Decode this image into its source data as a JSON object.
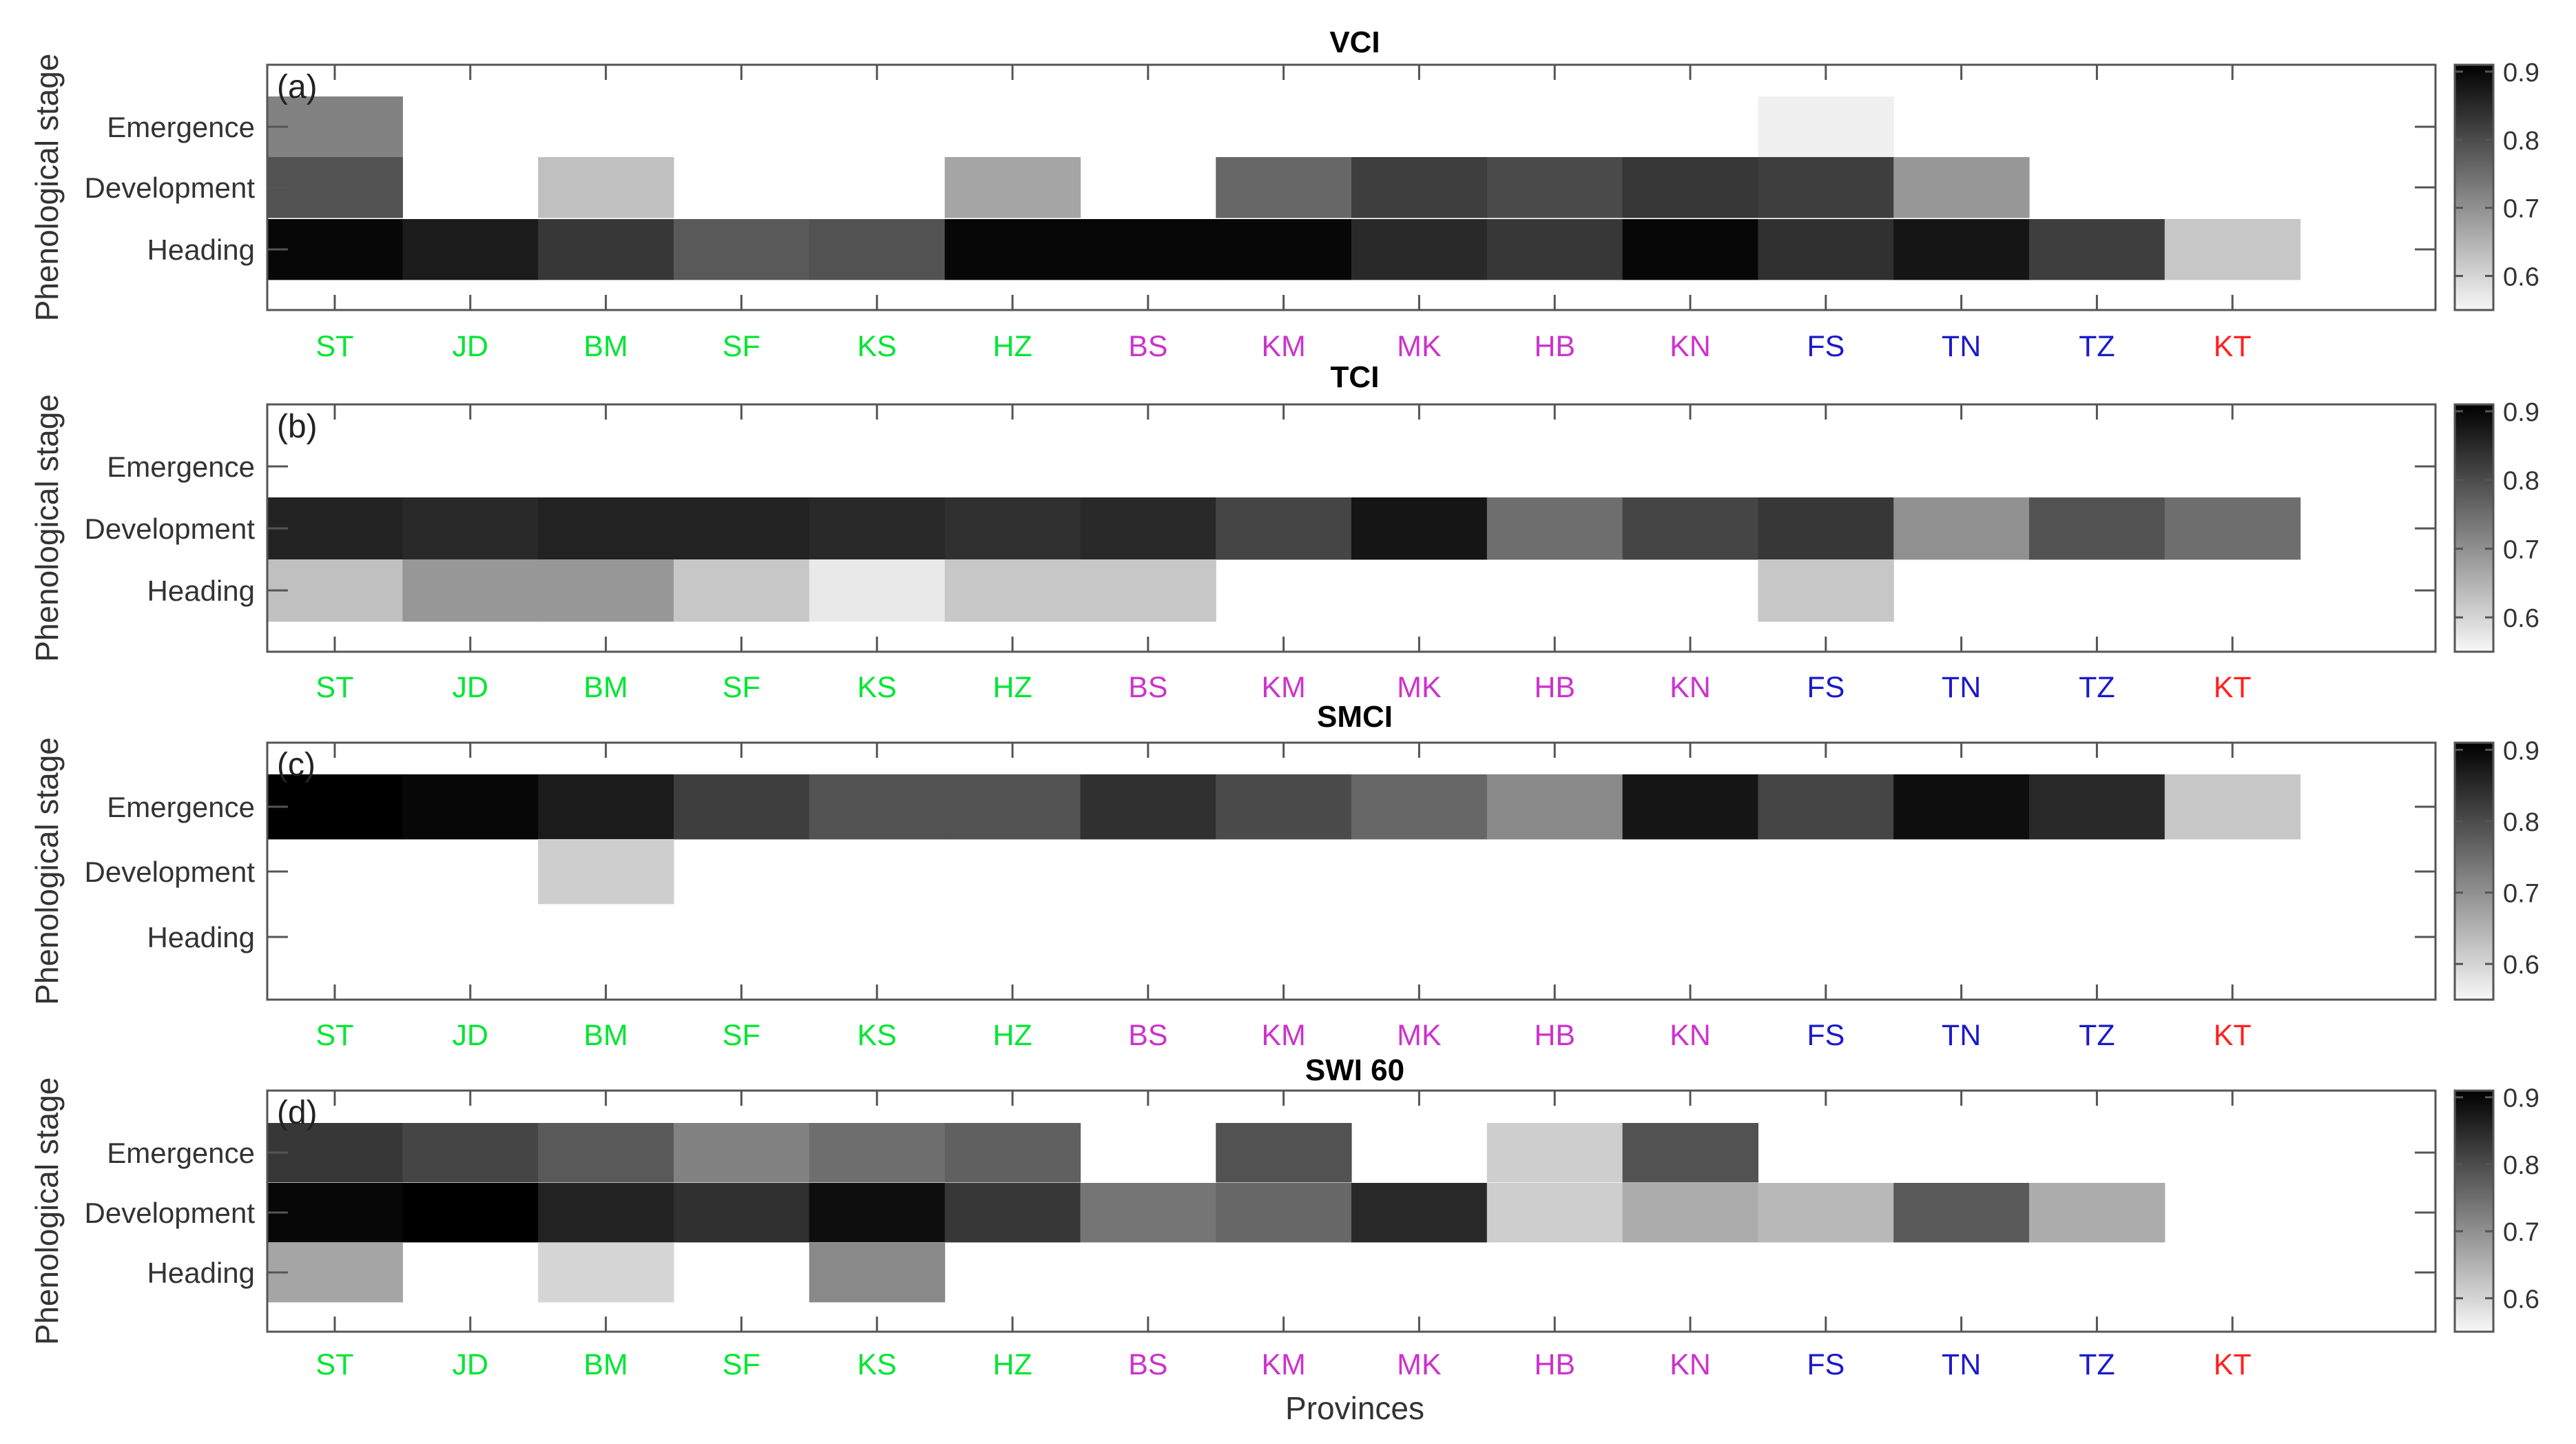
{
  "chart_data": {
    "type": "heatmap",
    "provinces": [
      "ST",
      "JD",
      "BM",
      "SF",
      "KS",
      "HZ",
      "BS",
      "KM",
      "MK",
      "HB",
      "KN",
      "FS",
      "TN",
      "TZ",
      "KT"
    ],
    "province_colors": [
      "#00e632",
      "#00e632",
      "#00e632",
      "#00e632",
      "#00e632",
      "#00e632",
      "#cc33cc",
      "#cc33cc",
      "#cc33cc",
      "#cc33cc",
      "#cc33cc",
      "#1a1acc",
      "#1a1acc",
      "#1a1acc",
      "#ff2020"
    ],
    "stages": [
      "Emergence",
      "Development",
      "Heading"
    ],
    "xlabel": "Provinces",
    "ylabel": "Phenological stage",
    "colorbar": {
      "min": 0.55,
      "max": 0.91,
      "ticks": [
        "0.9",
        "0.8",
        "0.7",
        "0.6"
      ],
      "tick_values": [
        0.9,
        0.8,
        0.7,
        0.6
      ]
    },
    "panels": [
      {
        "tag": "(a)",
        "title": "VCI",
        "values": [
          [
            0.72,
            null,
            null,
            null,
            null,
            null,
            null,
            null,
            null,
            null,
            null,
            0.56,
            null,
            null,
            null
          ],
          [
            0.79,
            null,
            0.63,
            null,
            null,
            0.67,
            null,
            0.76,
            0.82,
            0.8,
            0.83,
            0.82,
            0.69,
            null,
            null
          ],
          [
            0.9,
            0.87,
            0.83,
            0.78,
            0.79,
            0.9,
            0.9,
            0.9,
            0.85,
            0.83,
            0.9,
            0.84,
            0.88,
            0.82,
            0.62
          ]
        ]
      },
      {
        "tag": "(b)",
        "title": "TCI",
        "values": [
          [
            null,
            null,
            null,
            null,
            null,
            null,
            null,
            null,
            null,
            null,
            null,
            null,
            null,
            null,
            null
          ],
          [
            0.86,
            0.85,
            0.86,
            0.86,
            0.85,
            0.84,
            0.85,
            0.81,
            0.88,
            0.75,
            0.81,
            0.83,
            0.7,
            0.79,
            0.75
          ],
          [
            0.63,
            0.69,
            0.69,
            0.62,
            0.57,
            0.62,
            0.62,
            null,
            null,
            null,
            null,
            0.62,
            null,
            null,
            null
          ]
        ]
      },
      {
        "tag": "(c)",
        "title": "SMCI",
        "values": [
          [
            0.91,
            0.9,
            0.87,
            0.82,
            0.79,
            0.79,
            0.84,
            0.8,
            0.76,
            0.71,
            0.88,
            0.81,
            0.89,
            0.85,
            0.62
          ],
          [
            null,
            null,
            0.61,
            null,
            null,
            null,
            null,
            null,
            null,
            null,
            null,
            null,
            null,
            null,
            null
          ],
          [
            null,
            null,
            null,
            null,
            null,
            null,
            null,
            null,
            null,
            null,
            null,
            null,
            null,
            null,
            null
          ]
        ]
      },
      {
        "tag": "(d)",
        "title": "SWI 60",
        "values": [
          [
            0.83,
            0.81,
            0.78,
            0.72,
            0.75,
            0.77,
            null,
            0.79,
            null,
            0.61,
            0.79,
            null,
            null,
            null,
            null
          ],
          [
            0.9,
            0.91,
            0.86,
            0.84,
            0.89,
            0.83,
            0.74,
            0.76,
            0.85,
            0.61,
            0.66,
            0.64,
            0.78,
            0.66,
            null
          ],
          [
            0.67,
            null,
            0.6,
            null,
            0.71,
            null,
            null,
            null,
            null,
            null,
            null,
            null,
            null,
            null,
            null
          ]
        ]
      }
    ]
  }
}
